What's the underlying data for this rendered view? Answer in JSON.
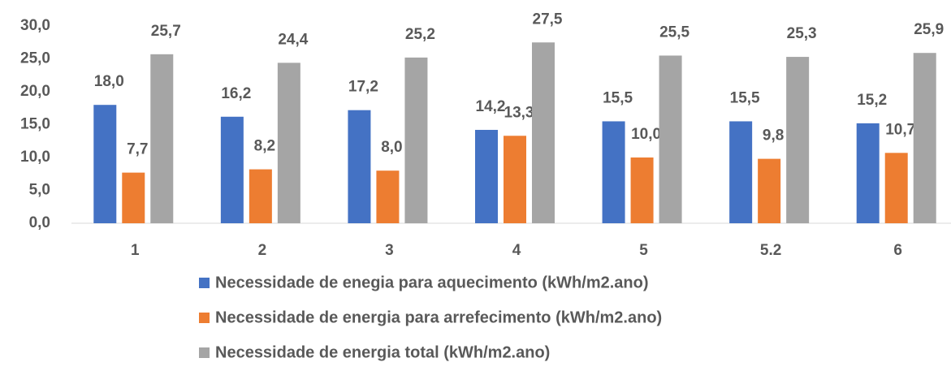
{
  "chart_data": {
    "type": "bar",
    "categories": [
      "1",
      "2",
      "3",
      "4",
      "5",
      "5.2",
      "6"
    ],
    "series": [
      {
        "name": "Necessidade de enegia para aquecimento (kWh/m2.ano)",
        "color": "#4472c4",
        "values": [
          18.0,
          16.2,
          17.2,
          14.2,
          15.5,
          15.5,
          15.2
        ],
        "value_labels": [
          "18,0",
          "16,2",
          "17,2",
          "14,2",
          "15,5",
          "15,5",
          "15,2"
        ]
      },
      {
        "name": "Necessidade de energia para arrefecimento (kWh/m2.ano)",
        "color": "#ed7d31",
        "values": [
          7.7,
          8.2,
          8.0,
          13.3,
          10.0,
          9.8,
          10.7
        ],
        "value_labels": [
          "7,7",
          "8,2",
          "8,0",
          "13,3",
          "10,0",
          "9,8",
          "10,7"
        ]
      },
      {
        "name": "Necessidade de energia total (kWh/m2.ano)",
        "color": "#a5a5a5",
        "values": [
          25.7,
          24.4,
          25.2,
          27.5,
          25.5,
          25.3,
          25.9
        ],
        "value_labels": [
          "25,7",
          "24,4",
          "25,2",
          "27,5",
          "25,5",
          "25,3",
          "25,9"
        ]
      }
    ],
    "ylim": [
      0,
      30
    ],
    "yticks": [
      {
        "value": 0,
        "label": "0,0"
      },
      {
        "value": 5,
        "label": "5,0"
      },
      {
        "value": 10,
        "label": "10,0"
      },
      {
        "value": 15,
        "label": "15,0"
      },
      {
        "value": 20,
        "label": "20,0"
      },
      {
        "value": 25,
        "label": "25,0"
      },
      {
        "value": 30,
        "label": "30,0"
      }
    ],
    "grid": false,
    "legend": "bottom"
  }
}
